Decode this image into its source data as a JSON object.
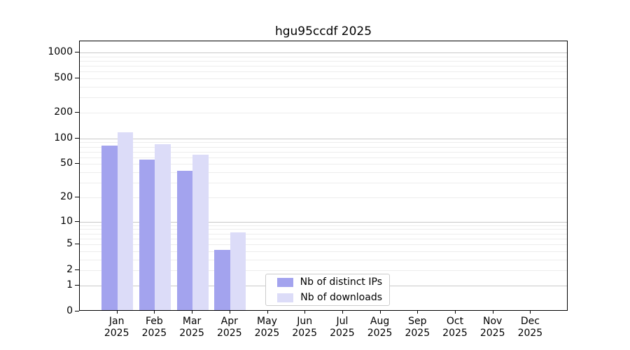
{
  "chart_data": {
    "type": "bar",
    "title": "hgu95ccdf 2025",
    "x_labels": [
      {
        "month": "Jan",
        "year": "2025"
      },
      {
        "month": "Feb",
        "year": "2025"
      },
      {
        "month": "Mar",
        "year": "2025"
      },
      {
        "month": "Apr",
        "year": "2025"
      },
      {
        "month": "May",
        "year": "2025"
      },
      {
        "month": "Jun",
        "year": "2025"
      },
      {
        "month": "Jul",
        "year": "2025"
      },
      {
        "month": "Aug",
        "year": "2025"
      },
      {
        "month": "Sep",
        "year": "2025"
      },
      {
        "month": "Oct",
        "year": "2025"
      },
      {
        "month": "Nov",
        "year": "2025"
      },
      {
        "month": "Dec",
        "year": "2025"
      }
    ],
    "series": [
      {
        "name": "Nb of distinct IPs",
        "color": "#a3a3ee",
        "values": [
          80,
          54,
          40,
          4,
          0,
          0,
          0,
          0,
          0,
          0,
          0,
          0
        ]
      },
      {
        "name": "Nb of downloads",
        "color": "#dcdcf8",
        "values": [
          113,
          82,
          62,
          7,
          0,
          0,
          0,
          0,
          0,
          0,
          0,
          0
        ]
      }
    ],
    "y_axis": {
      "scale": "log1p",
      "ticks": [
        0,
        1,
        2,
        5,
        10,
        20,
        50,
        100,
        200,
        500,
        1000
      ],
      "ylim_top_approx": 1350
    },
    "grid": "horizontal",
    "legend_position": "lower-center"
  }
}
